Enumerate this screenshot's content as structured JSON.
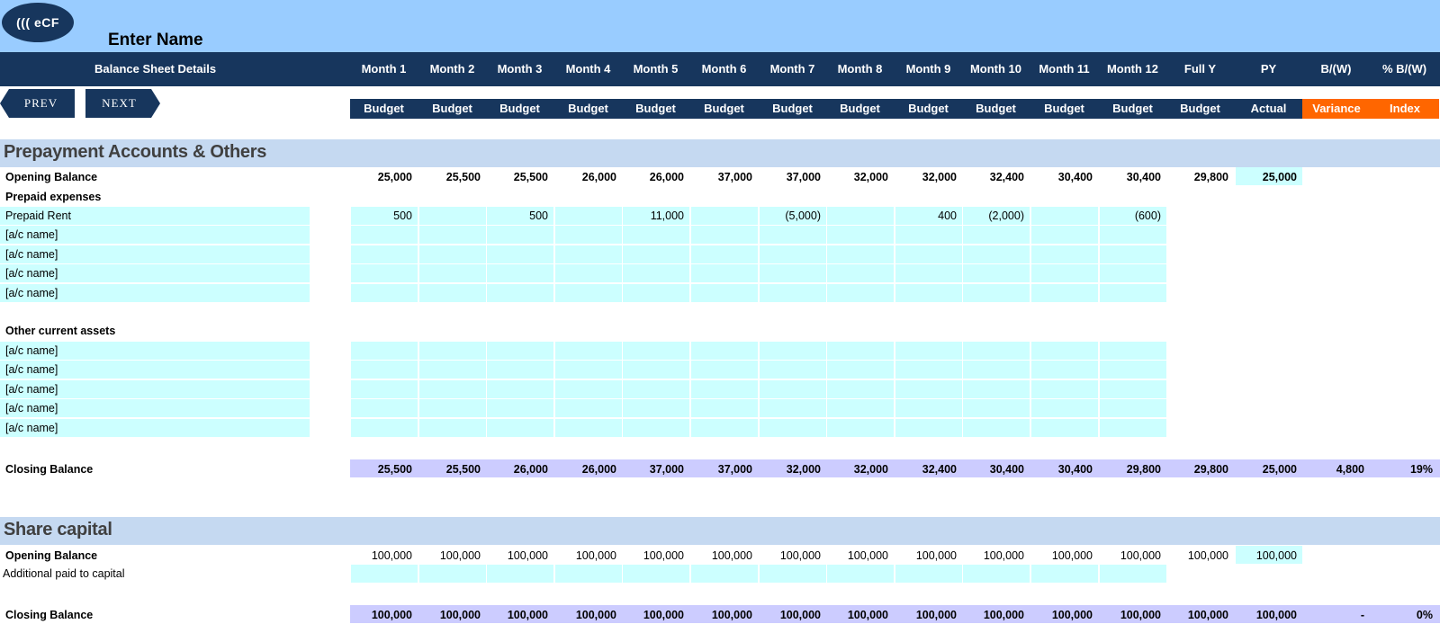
{
  "app": {
    "logo_text": "((( eCF",
    "enter_name": "Enter Name"
  },
  "header": {
    "title": "Balance Sheet  Details",
    "columns": [
      "Month 1",
      "Month 2",
      "Month 3",
      "Month 4",
      "Month 5",
      "Month 6",
      "Month 7",
      "Month 8",
      "Month 9",
      "Month 10",
      "Month 11",
      "Month 12",
      "Full Y",
      "PY",
      "B/(W)",
      "% B/(W)"
    ],
    "sub": [
      "Budget",
      "Budget",
      "Budget",
      "Budget",
      "Budget",
      "Budget",
      "Budget",
      "Budget",
      "Budget",
      "Budget",
      "Budget",
      "Budget",
      "Budget",
      "Actual",
      "Variance",
      "Index"
    ]
  },
  "nav": {
    "prev": "PREV",
    "next": "NEXT"
  },
  "sections": [
    {
      "title": "Prepayment Accounts & Others",
      "opening": {
        "label": "Opening Balance",
        "values": [
          "25,000",
          "25,500",
          "25,500",
          "26,000",
          "26,000",
          "37,000",
          "37,000",
          "32,000",
          "32,000",
          "32,400",
          "30,400",
          "30,400",
          "29,800",
          "25,000"
        ]
      },
      "group1": {
        "label": "Prepaid expenses",
        "rows": [
          {
            "label": "Prepaid Rent",
            "values": [
              "500",
              "",
              "500",
              "",
              "11,000",
              "",
              "(5,000)",
              "",
              "400",
              "(2,000)",
              "",
              "(600)"
            ]
          },
          {
            "label": "[a/c name]",
            "values": []
          },
          {
            "label": "[a/c name]",
            "values": []
          },
          {
            "label": "[a/c name]",
            "values": []
          },
          {
            "label": "[a/c name]",
            "values": []
          }
        ]
      },
      "group2": {
        "label": "Other current assets",
        "rows": [
          {
            "label": "[a/c name]",
            "values": []
          },
          {
            "label": "[a/c name]",
            "values": []
          },
          {
            "label": "[a/c name]",
            "values": []
          },
          {
            "label": "[a/c name]",
            "values": []
          },
          {
            "label": "[a/c name]",
            "values": []
          }
        ]
      },
      "closing": {
        "label": "Closing Balance",
        "values": [
          "25,500",
          "25,500",
          "26,000",
          "26,000",
          "37,000",
          "37,000",
          "32,000",
          "32,000",
          "32,400",
          "30,400",
          "30,400",
          "29,800",
          "29,800",
          "25,000",
          "4,800",
          "19%"
        ]
      }
    },
    {
      "title": "Share capital",
      "opening": {
        "label": "Opening Balance",
        "values": [
          "100,000",
          "100,000",
          "100,000",
          "100,000",
          "100,000",
          "100,000",
          "100,000",
          "100,000",
          "100,000",
          "100,000",
          "100,000",
          "100,000",
          "100,000",
          "100,000"
        ]
      },
      "rows": [
        {
          "label": "Additional paid to capital",
          "values": []
        }
      ],
      "closing": {
        "label": "Closing Balance",
        "values": [
          "100,000",
          "100,000",
          "100,000",
          "100,000",
          "100,000",
          "100,000",
          "100,000",
          "100,000",
          "100,000",
          "100,000",
          "100,000",
          "100,000",
          "100,000",
          "100,000",
          "-",
          "0%"
        ]
      }
    }
  ]
}
